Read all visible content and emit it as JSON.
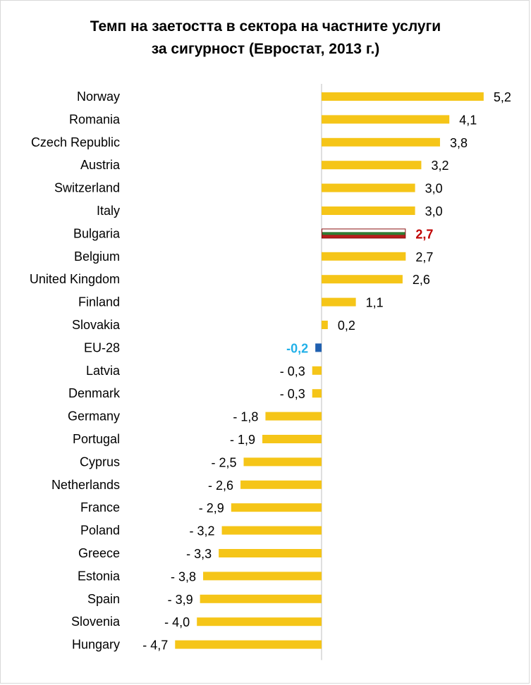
{
  "chart_data": {
    "type": "bar",
    "orientation": "horizontal",
    "title_line1": "Темп на заетостта в сектора на частните услуги",
    "title_line2": "за сигурност (Евростат,  2013 г.)",
    "categories": [
      "Norway",
      "Romania",
      "Czech Republic",
      "Austria",
      "Switzerland",
      "Italy",
      "Bulgaria",
      "Belgium",
      "United Kingdom",
      "Finland",
      "Slovakia",
      "EU-28",
      "Latvia",
      "Denmark",
      "Germany",
      "Portugal",
      "Cyprus",
      "Netherlands",
      "France",
      "Poland",
      "Greece",
      "Estonia",
      "Spain",
      "Slovenia",
      "Hungary"
    ],
    "values": [
      5.2,
      4.1,
      3.8,
      3.2,
      3.0,
      3.0,
      2.7,
      2.7,
      2.6,
      1.1,
      0.2,
      -0.2,
      -0.3,
      -0.3,
      -1.8,
      -1.9,
      -2.5,
      -2.6,
      -2.9,
      -3.2,
      -3.3,
      -3.8,
      -3.9,
      -4.0,
      -4.7
    ],
    "labels": [
      "5,2",
      "4,1",
      "3,8",
      "3,2",
      "3,0",
      "3,0",
      "2,7",
      "2,7",
      "2,6",
      "1,1",
      "0,2",
      "-0,2",
      "- 0,3",
      "- 0,3",
      "- 1,8",
      "- 1,9",
      "- 2,5",
      "- 2,6",
      "- 2,9",
      "- 3,2",
      "- 3,3",
      "- 3,8",
      "- 3,9",
      "- 4,0",
      "- 4,7"
    ],
    "highlights": {
      "Bulgaria": {
        "style": "flag",
        "label_color": "#c00000",
        "bold": true
      },
      "EU-28": {
        "bar_color": "#2060b0",
        "label_color": "#21b0e8",
        "bold": true
      }
    },
    "colors": {
      "bar": "#f5c518",
      "axis": "#bfbfbf",
      "flag_white": "#ffffff",
      "flag_green": "#2e7d32",
      "flag_red": "#b71c1c"
    },
    "grid": false,
    "legend": "none"
  }
}
